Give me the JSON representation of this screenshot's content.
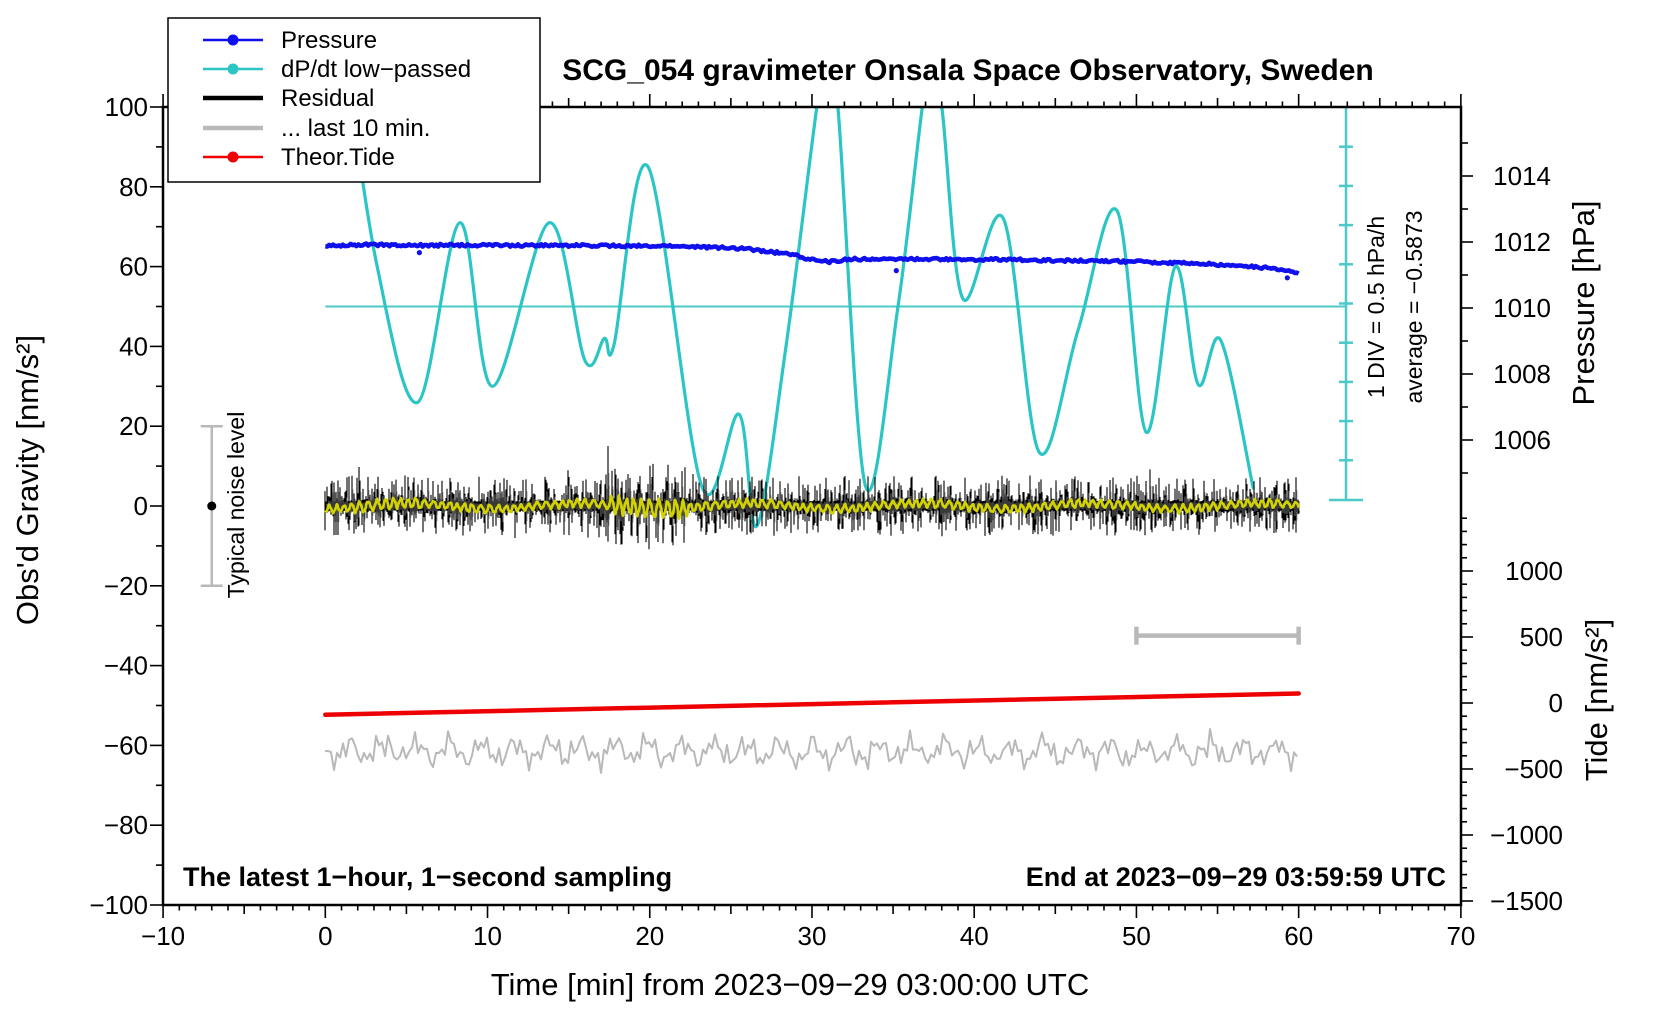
{
  "title": "SCG_054 gravimeter Onsala Space Observatory, Sweden",
  "legend": {
    "items": [
      {
        "label": "Pressure",
        "color": "#1010ee",
        "style": "thin-dot"
      },
      {
        "label": "dP/dt low−passed",
        "color": "#2cc5c5",
        "style": "thin-dot"
      },
      {
        "label": "Residual",
        "color": "#000000",
        "style": "thick"
      },
      {
        "label": "... last 10 min.",
        "color": "#b9b9b9",
        "style": "thick"
      },
      {
        "label": "Theor.Tide",
        "color": "#ee0000",
        "style": "thin-dot"
      }
    ]
  },
  "texts": {
    "noise_label": "Typical noise level",
    "div_label": "1 DIV = 0.5 hPa/h",
    "avg_label": "average = −0.5873",
    "footer_left": "The latest 1−hour, 1−second sampling",
    "footer_right": "End at 2023−09−29 03:59:59 UTC"
  },
  "chart_data": {
    "type": "line",
    "axes": {
      "x": {
        "label": "Time [min] from 2023−09−29 03:00:00 UTC",
        "range": [
          -10,
          70
        ],
        "major_ticks": [
          -10,
          0,
          10,
          20,
          30,
          40,
          50,
          60,
          70
        ],
        "minor_step": 1,
        "medium_step": 5
      },
      "y_left": {
        "label": "Obs'd Gravity [nm/s²]",
        "range": [
          -100,
          100
        ],
        "major_ticks": [
          100,
          80,
          60,
          40,
          20,
          0,
          -20,
          -40,
          -60,
          -80,
          -100
        ],
        "minor_step": 10
      },
      "y_right_pressure": {
        "label": "Pressure [hPa]",
        "major_ticks": [
          1014,
          1012,
          1010,
          1008,
          1006
        ],
        "minor_step": 1,
        "tick_range": [
          1005,
          1015
        ]
      },
      "y_right_tide": {
        "label": "Tide [nm/s²]",
        "major_ticks": [
          1000,
          500,
          0,
          -500,
          -1000,
          -1500
        ],
        "minor_step": 100,
        "tick_range": [
          -1500,
          1400
        ]
      }
    },
    "grid": false,
    "legend_position": "top-left",
    "series": [
      {
        "name": "Pressure",
        "color": "#1010ee",
        "units": "gravity-equivalent nm/s2 (1012 hPa ~ g 66)",
        "anchors": [
          [
            0,
            65.2
          ],
          [
            3,
            65.5
          ],
          [
            6,
            65.3
          ],
          [
            9,
            65.4
          ],
          [
            12,
            65.3
          ],
          [
            15,
            65.3
          ],
          [
            18,
            65.2
          ],
          [
            21,
            65.1
          ],
          [
            24,
            64.8
          ],
          [
            26,
            64.5
          ],
          [
            27.5,
            63.6
          ],
          [
            28.5,
            63.3
          ],
          [
            30,
            61.7
          ],
          [
            31,
            61.2
          ],
          [
            32.5,
            61.9
          ],
          [
            34,
            61.8
          ],
          [
            36,
            61.9
          ],
          [
            38,
            61.8
          ],
          [
            40,
            61.7
          ],
          [
            42,
            61.8
          ],
          [
            44,
            61.6
          ],
          [
            46,
            61.5
          ],
          [
            48,
            61.4
          ],
          [
            50,
            61.2
          ],
          [
            52,
            61.0
          ],
          [
            54,
            60.7
          ],
          [
            56,
            60.3
          ],
          [
            58,
            59.7
          ],
          [
            59.3,
            59.1
          ],
          [
            60,
            58.5
          ]
        ],
        "outliers": [
          [
            5.8,
            63.5
          ],
          [
            35.2,
            59.0
          ],
          [
            59.3,
            57.2
          ]
        ],
        "pressure_start_hPa": 1012.0,
        "pressure_end_hPa": 1011.3
      },
      {
        "name": "dP/dt low-passed",
        "color": "#2cc5c5",
        "reference_level_gravity": 50,
        "reference_pressure_hPa": 1010,
        "div_value": "0.5 hPa/h",
        "anchors": [
          [
            1.2,
            113
          ],
          [
            3.2,
            60
          ],
          [
            5.7,
            26
          ],
          [
            8.3,
            71
          ],
          [
            10.3,
            30
          ],
          [
            13.8,
            71
          ],
          [
            16.0,
            36.5
          ],
          [
            17.2,
            42
          ],
          [
            17.8,
            40.5
          ],
          [
            19.9,
            85
          ],
          [
            23.2,
            5
          ],
          [
            25.5,
            23
          ],
          [
            26.6,
            -5
          ],
          [
            28.4,
            40
          ],
          [
            30.3,
            100
          ],
          [
            30.9,
            113
          ],
          [
            31.6,
            100
          ],
          [
            33.3,
            5
          ],
          [
            35.3,
            50
          ],
          [
            36.8,
            100
          ],
          [
            37.3,
            110
          ],
          [
            38.0,
            100
          ],
          [
            39.3,
            52
          ],
          [
            41.8,
            72
          ],
          [
            44.0,
            13.5
          ],
          [
            46.4,
            44
          ],
          [
            48.8,
            74
          ],
          [
            50.6,
            18.5
          ],
          [
            52.4,
            60
          ],
          [
            53.8,
            30.5
          ],
          [
            55.2,
            41.5
          ],
          [
            57.2,
            4.5
          ]
        ]
      },
      {
        "name": "Residual",
        "color": "#000000",
        "center": 0,
        "typical_amplitude": 8,
        "burst_interval_min": [
          17.3,
          22.4
        ],
        "span_min": [
          0,
          60
        ]
      },
      {
        "name": "last 10 min",
        "color": "#b9b9b9",
        "center": -61.5,
        "amplitude": 6,
        "span_min": [
          0,
          60
        ],
        "interval_bar": {
          "from_min": 50,
          "to_min": 60,
          "gravity": -32.5
        }
      },
      {
        "name": "Theor.Tide",
        "color": "#ee0000",
        "start": [
          0,
          -52.3
        ],
        "end": [
          60,
          -47.0
        ],
        "tide_units_start": -115,
        "tide_units_end": 40
      },
      {
        "name": "Residual smoothed",
        "color": "#d2d200",
        "center": 0,
        "amplitude": 1.2,
        "burst_interval_min": [
          17.4,
          22.3
        ],
        "span_min": [
          0,
          60
        ]
      }
    ],
    "annotations": {
      "noise_bar": {
        "x_min": -7,
        "gravity_from": -20,
        "gravity_to": 20,
        "dot_at": 0
      },
      "div_scale_bar": {
        "x_min": 63,
        "divisions": 10,
        "gravity_top": 100,
        "gravity_bottom": -1.5
      }
    }
  }
}
